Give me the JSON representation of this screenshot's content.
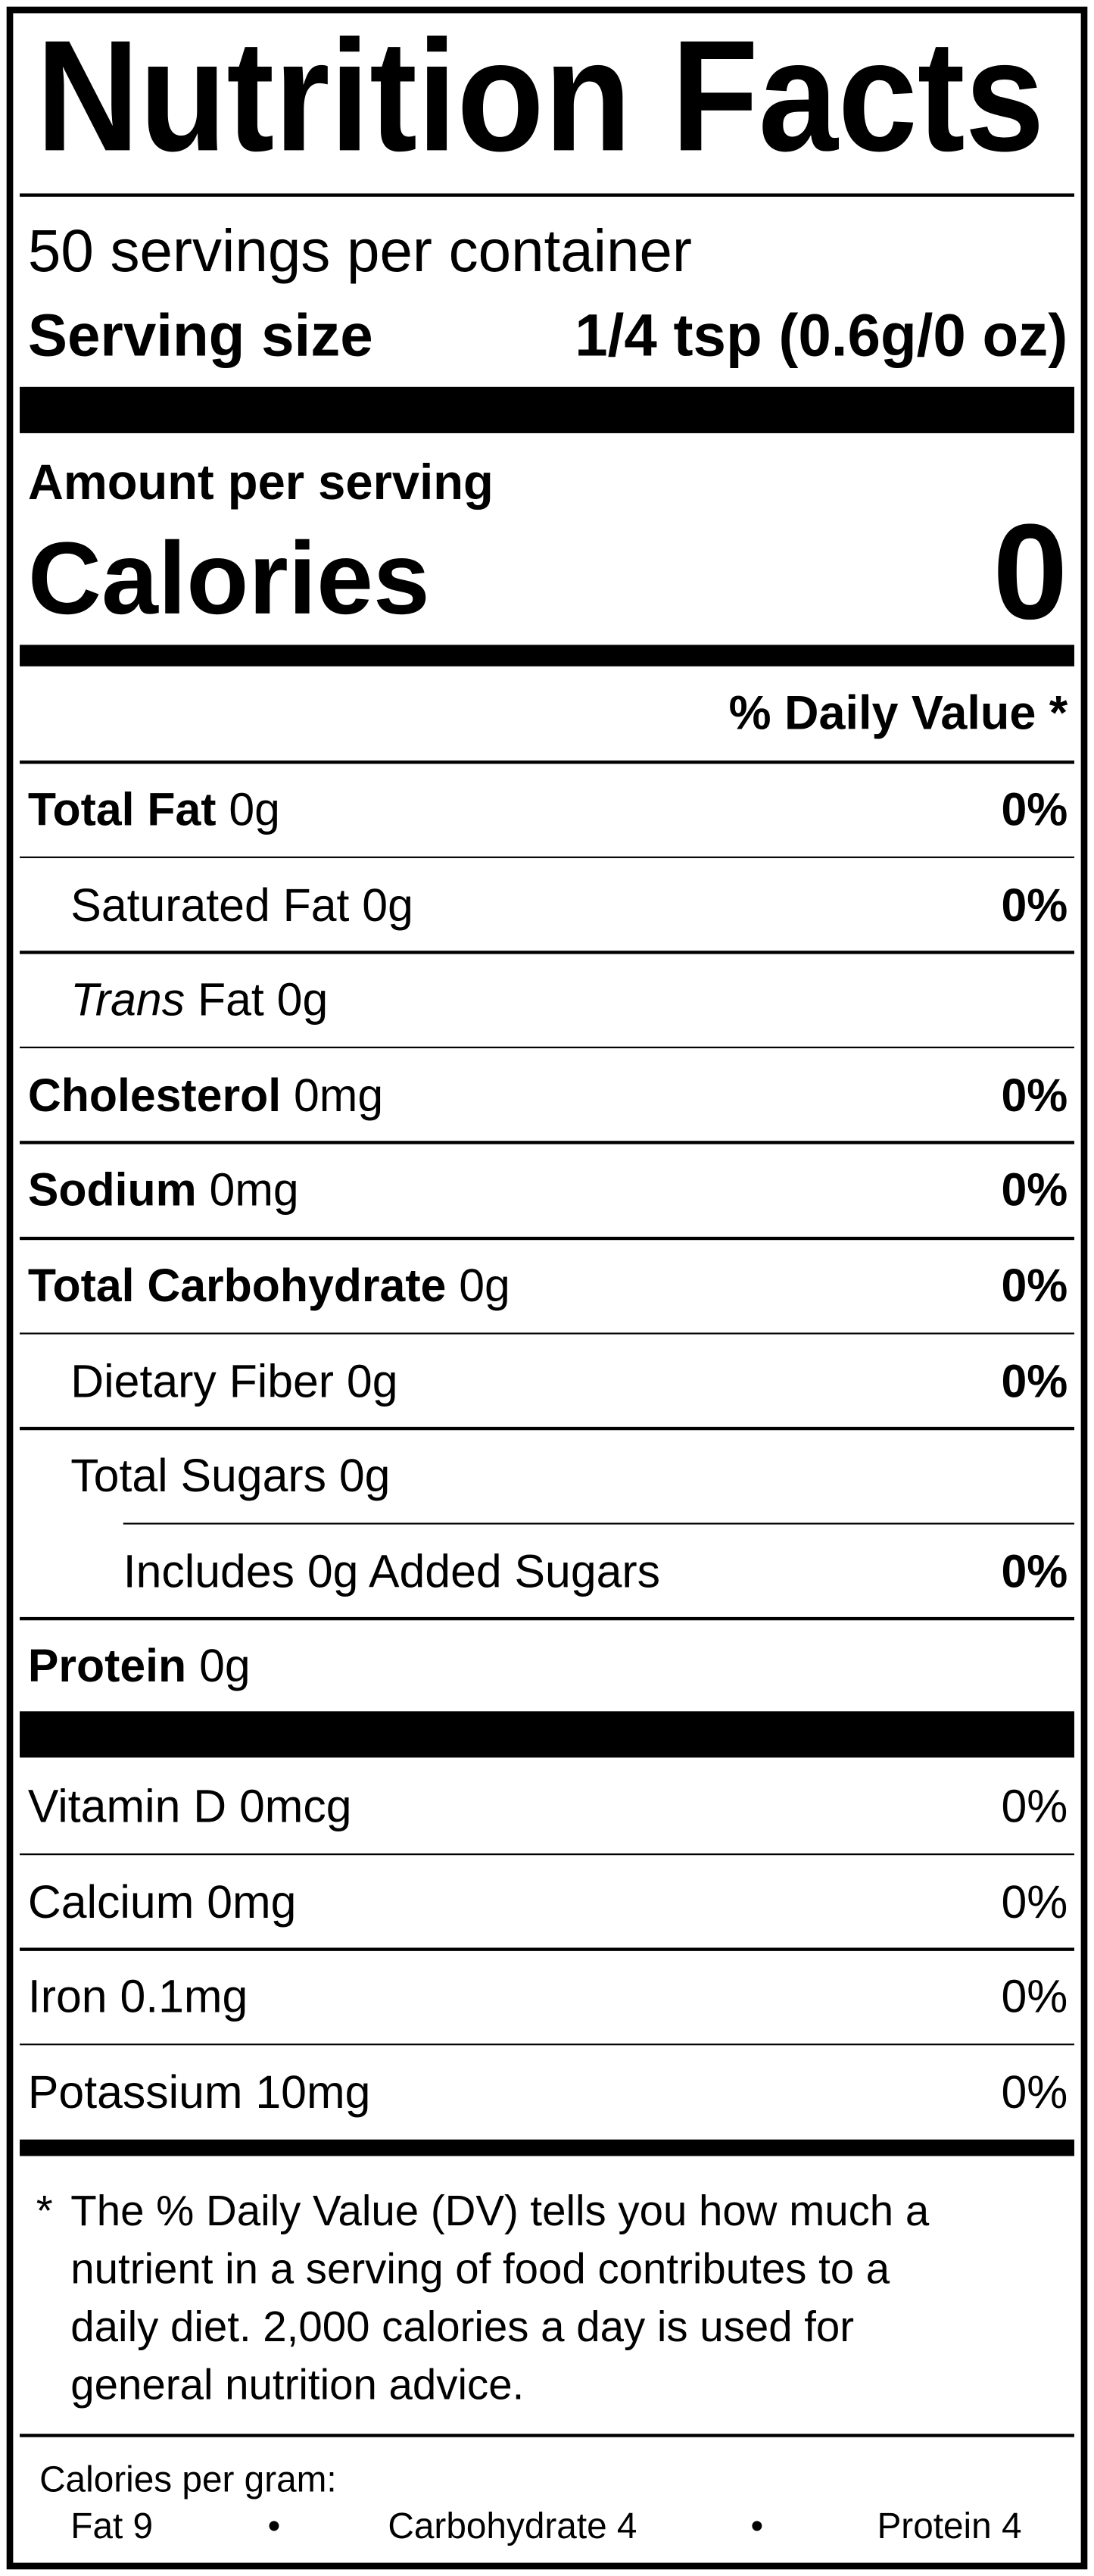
{
  "title": "Nutrition Facts",
  "servings_per_container": "50 servings per container",
  "serving_size": {
    "label": "Serving size",
    "value": "1/4 tsp (0.6g/0 oz)"
  },
  "amount_per_serving": "Amount per serving",
  "calories": {
    "label": "Calories",
    "value": "0"
  },
  "daily_value_header": "% Daily Value *",
  "nutrients": [
    {
      "label": "Total Fat",
      "amount": "0g",
      "dv": "0%",
      "bold": true,
      "indent": 0
    },
    {
      "label": "Saturated Fat",
      "amount": "0g",
      "dv": "0%",
      "bold": false,
      "indent": 1
    },
    {
      "label_italic": "Trans",
      "label": "Fat",
      "amount": "0g",
      "bold": false,
      "indent": 1
    },
    {
      "label": "Cholesterol",
      "amount": "0mg",
      "dv": "0%",
      "bold": true,
      "indent": 0
    },
    {
      "label": "Sodium",
      "amount": "0mg",
      "dv": "0%",
      "bold": true,
      "indent": 0
    },
    {
      "label": "Total Carbohydrate",
      "amount": "0g",
      "dv": "0%",
      "bold": true,
      "indent": 0
    },
    {
      "label": "Dietary Fiber",
      "amount": "0g",
      "dv": "0%",
      "bold": false,
      "indent": 1
    },
    {
      "label": "Total Sugars",
      "amount": "0g",
      "bold": false,
      "indent": 1
    },
    {
      "label": "Includes 0g Added Sugars",
      "dv": "0%",
      "bold": false,
      "indent": 2
    },
    {
      "label": "Protein",
      "amount": "0g",
      "bold": true,
      "indent": 0
    }
  ],
  "vitamins": [
    {
      "label": "Vitamin D",
      "amount": "0mcg",
      "dv": "0%"
    },
    {
      "label": "Calcium",
      "amount": "0mg",
      "dv": "0%"
    },
    {
      "label": "Iron",
      "amount": "0.1mg",
      "dv": "0%"
    },
    {
      "label": "Potassium",
      "amount": "10mg",
      "dv": "0%"
    }
  ],
  "footnote": {
    "marker": "*",
    "lines": [
      "The % Daily Value (DV) tells you how much a",
      "nutrient in a serving of food contributes to a",
      "daily diet. 2,000 calories a day is used for",
      "general nutrition advice."
    ]
  },
  "calories_per_gram": {
    "title": "Calories per gram:",
    "items": [
      "Fat 9",
      "Carbohydrate 4",
      "Protein 4"
    ]
  }
}
